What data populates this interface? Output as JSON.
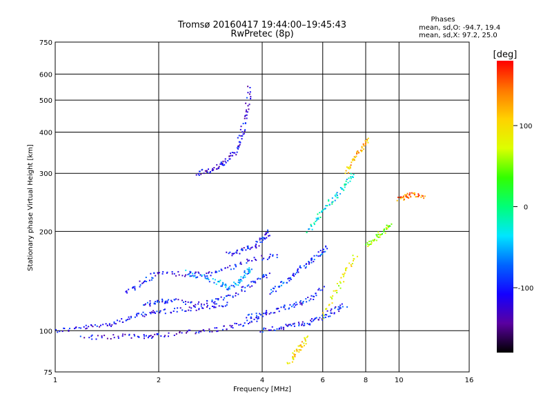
{
  "chart_data": {
    "type": "scatter",
    "title": "Tromsø 20160417 19:44:00–19:45:43",
    "subtitle": "RwPretec (8p)",
    "xlabel": "Frequency [MHz]",
    "ylabel": "Stationary phase Virtual Height [km]",
    "x_scale": "log",
    "y_scale": "log",
    "xlim": [
      1,
      16
    ],
    "ylim": [
      75,
      750
    ],
    "x_ticks": [
      1,
      2,
      4,
      6,
      8,
      10,
      16
    ],
    "y_ticks": [
      75,
      100,
      200,
      300,
      400,
      500,
      600,
      750
    ],
    "grid": true,
    "info": {
      "heading": "Phases",
      "line1": "mean, sd,O: -94.7, 19.4",
      "line2": "mean, sd,X:  97.2, 25.0"
    },
    "colorbar": {
      "label": "[deg]",
      "range": [
        -180,
        180
      ],
      "ticks": [
        100,
        0,
        -100
      ],
      "colormap": [
        "#000000",
        "#5a00a0",
        "#1400ff",
        "#0064ff",
        "#00e6ff",
        "#00ff78",
        "#32ff00",
        "#dcff00",
        "#ffd200",
        "#ff7800",
        "#ff0000"
      ]
    },
    "traces": [
      {
        "f": [
          1.0,
          1.2,
          1.4,
          1.6,
          1.8,
          2.0,
          2.4,
          2.8,
          3.2
        ],
        "h": [
          100,
          102,
          104,
          108,
          112,
          114,
          116,
          118,
          120
        ],
        "phase": -110
      },
      {
        "f": [
          1.2,
          1.5,
          1.8,
          2.0,
          2.5,
          3.0,
          3.5,
          4.0
        ],
        "h": [
          95,
          96,
          96,
          97,
          99,
          101,
          105,
          110
        ],
        "phase": -115
      },
      {
        "f": [
          1.6,
          1.8,
          2.0,
          2.4,
          2.8,
          3.2,
          3.8,
          4.5
        ],
        "h": [
          130,
          140,
          150,
          148,
          148,
          155,
          165,
          170
        ],
        "phase": -105
      },
      {
        "f": [
          1.8,
          2.0,
          2.2,
          2.6,
          3.0,
          3.4,
          3.8,
          4.2
        ],
        "h": [
          120,
          122,
          124,
          120,
          125,
          130,
          140,
          150
        ],
        "phase": -100
      },
      {
        "f": [
          2.4,
          2.7,
          3.0,
          3.2,
          3.4,
          3.6,
          3.7
        ],
        "h": [
          150,
          145,
          140,
          135,
          140,
          150,
          155
        ],
        "phase": -60
      },
      {
        "f": [
          3.2,
          3.5,
          3.8,
          4.0,
          4.2
        ],
        "h": [
          170,
          175,
          180,
          190,
          200
        ],
        "phase": -105
      },
      {
        "f": [
          2.6,
          2.8,
          3.0,
          3.2,
          3.4,
          3.5,
          3.6,
          3.7
        ],
        "h": [
          300,
          305,
          315,
          330,
          360,
          400,
          460,
          560
        ],
        "phase": -115
      },
      {
        "f": [
          4.0,
          4.5,
          5.0,
          5.5,
          6.0,
          6.5,
          7.0
        ],
        "h": [
          100,
          102,
          104,
          106,
          110,
          115,
          120
        ],
        "phase": -105
      },
      {
        "f": [
          3.6,
          4.0,
          4.5,
          5.0,
          5.5,
          6.0
        ],
        "h": [
          110,
          112,
          116,
          120,
          125,
          135
        ],
        "phase": -100
      },
      {
        "f": [
          4.2,
          4.6,
          5.0,
          5.4,
          5.8,
          6.2
        ],
        "h": [
          130,
          140,
          150,
          160,
          170,
          180
        ],
        "phase": -90
      },
      {
        "f": [
          5.4,
          5.8,
          6.2,
          6.6,
          7.0,
          7.4
        ],
        "h": [
          200,
          220,
          240,
          260,
          280,
          300
        ],
        "phase": -30
      },
      {
        "f": [
          7.0,
          7.4,
          7.8,
          8.2
        ],
        "h": [
          300,
          330,
          360,
          380
        ],
        "phase": 120
      },
      {
        "f": [
          8.0,
          8.5,
          9.0,
          9.5
        ],
        "h": [
          180,
          190,
          200,
          210
        ],
        "phase": 60
      },
      {
        "f": [
          10.0,
          10.5,
          11.0,
          12.0
        ],
        "h": [
          250,
          255,
          260,
          250
        ],
        "phase": 140
      },
      {
        "f": [
          6.0,
          6.5,
          7.0,
          7.5
        ],
        "h": [
          110,
          130,
          150,
          170
        ],
        "phase": 80
      },
      {
        "f": [
          4.8,
          5.0,
          5.2,
          5.4
        ],
        "h": [
          80,
          85,
          90,
          95
        ],
        "phase": 100
      }
    ]
  }
}
